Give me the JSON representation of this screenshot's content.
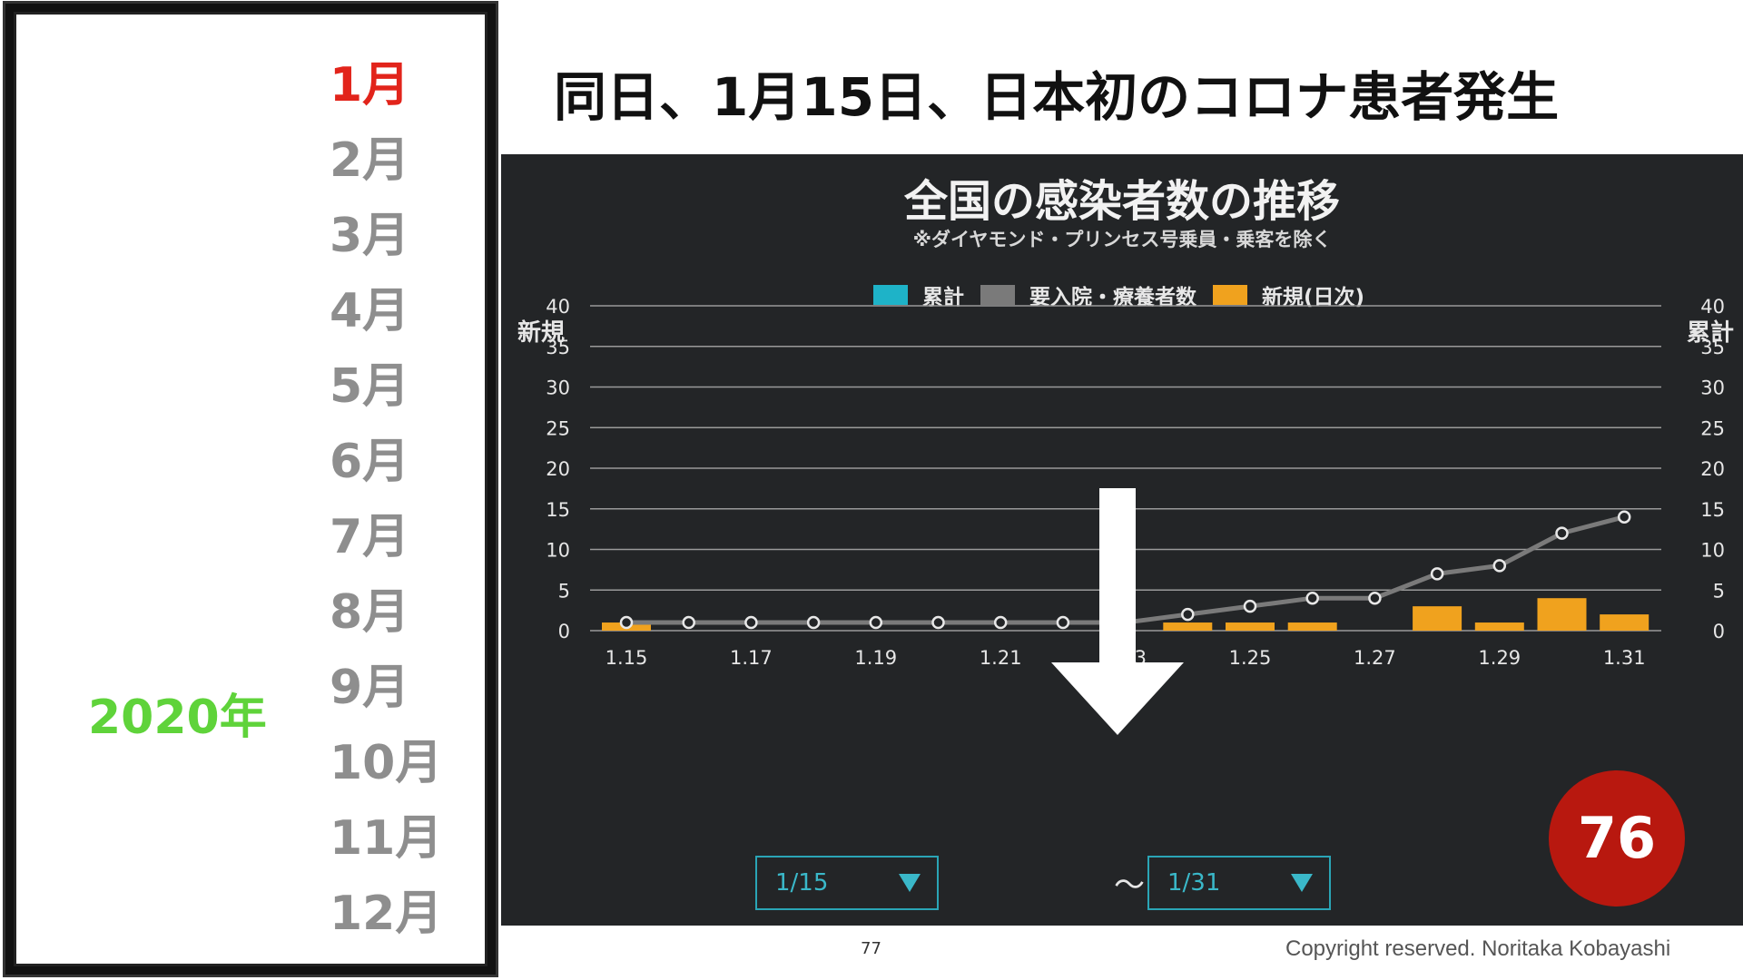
{
  "left_panel": {
    "year": "2020年",
    "months": [
      "1月",
      "2月",
      "3月",
      "4月",
      "5月",
      "6月",
      "7月",
      "8月",
      "9月",
      "10月",
      "11月",
      "12月"
    ],
    "active_month_index": 0
  },
  "headline": "同日、1月15日、日本初のコロナ患者発生",
  "chart_data": {
    "type": "bar",
    "title": "全国の感染者数の推移",
    "subtitle": "※ダイヤモンド・プリンセス号乗員・乗客を除く",
    "legend": [
      {
        "name": "累計",
        "color": "#1eb3c8"
      },
      {
        "name": "要入院・療養者数",
        "color": "#7a7a7a"
      },
      {
        "name": "新規(日次)",
        "color": "#f0a21e"
      }
    ],
    "legend_placement": "top-center",
    "ylabel_left": "新規",
    "ylabel_right": "累計",
    "yticks": [
      0,
      5,
      10,
      15,
      20,
      25,
      30,
      35,
      40
    ],
    "ylim": [
      0,
      40
    ],
    "grid": true,
    "categories": [
      "1.15",
      "1.16",
      "1.17",
      "1.18",
      "1.19",
      "1.20",
      "1.21",
      "1.22",
      "1.23",
      "1.24",
      "1.25",
      "1.26",
      "1.27",
      "1.28",
      "1.29",
      "1.30",
      "1.31"
    ],
    "xtick_labels": [
      "1.15",
      "1.17",
      "1.19",
      "1.21",
      "1.23",
      "1.25",
      "1.27",
      "1.29",
      "1.31"
    ],
    "series": [
      {
        "name": "新規(日次)",
        "type": "bar",
        "color": "#f0a21e",
        "values": [
          1,
          0,
          0,
          0,
          0,
          0,
          0,
          0,
          0,
          1,
          1,
          1,
          0,
          3,
          1,
          4,
          2
        ]
      },
      {
        "name": "要入院・療養者数",
        "type": "line",
        "color": "#7a7a7a",
        "values": [
          1,
          1,
          1,
          1,
          1,
          1,
          1,
          1,
          1,
          2,
          3,
          4,
          4,
          7,
          8,
          12,
          14
        ]
      }
    ]
  },
  "date_range": {
    "start": "1/15",
    "separator": "〜",
    "end": "1/31"
  },
  "badge": "76",
  "footer": {
    "page_number": "77",
    "copyright": "Copyright reserved. Noritaka Kobayashi"
  }
}
